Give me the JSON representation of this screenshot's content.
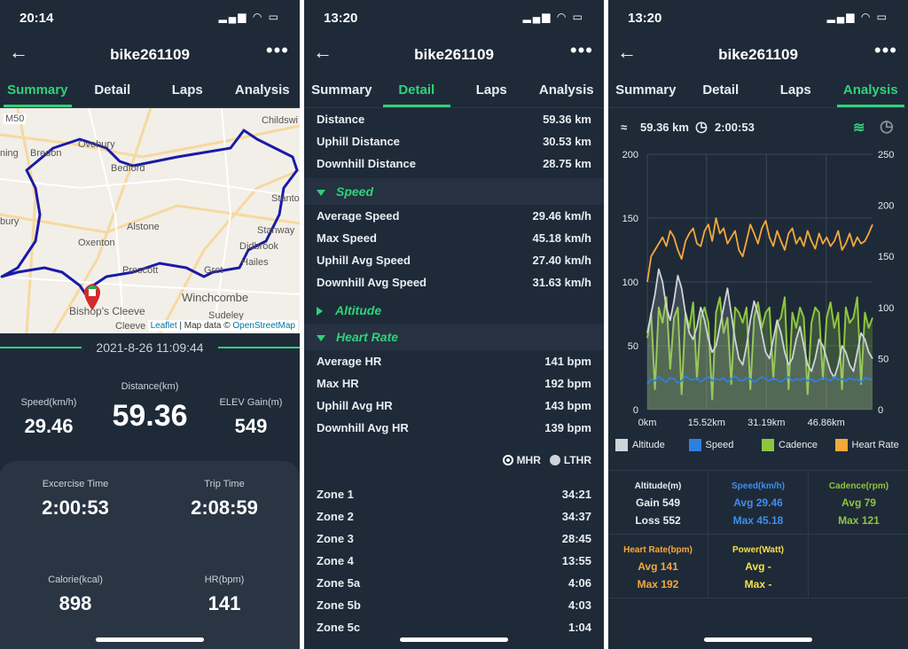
{
  "screens": [
    {
      "status_time": "20:14",
      "title": "bike261109",
      "tabs": [
        "Summary",
        "Detail",
        "Laps",
        "Analysis"
      ],
      "active_tab": 0,
      "map": {
        "labels": [
          "M50",
          "Childswi",
          "Ovebury",
          "ning",
          "Bredon",
          "Bedford",
          "bury",
          "Alstone",
          "Oxenton",
          "Stanton",
          "Stanway",
          "Didbrook",
          "Hailes",
          "Prescott",
          "Gret",
          "Winchcombe",
          "Sudeley",
          "Bishop's Cleeve",
          "Cleeve"
        ],
        "attribution_link1": "Leaflet",
        "attribution_text": " | Map data © ",
        "attribution_link2": "OpenStreetMap"
      },
      "date": "2021-8-26 11:09:44",
      "stats": {
        "speed_label": "Speed(km/h)",
        "speed_value": "29.46",
        "distance_label": "Distance(km)",
        "distance_value": "59.36",
        "elev_label": "ELEV Gain(m)",
        "elev_value": "549",
        "exercise_label": "Excercise Time",
        "exercise_value": "2:00:53",
        "trip_label": "Trip Time",
        "trip_value": "2:08:59",
        "calorie_label": "Calorie(kcal)",
        "calorie_value": "898",
        "hr_label": "HR(bpm)",
        "hr_value": "141"
      }
    },
    {
      "status_time": "13:20",
      "title": "bike261109",
      "tabs": [
        "Summary",
        "Detail",
        "Laps",
        "Analysis"
      ],
      "active_tab": 1,
      "top_rows": [
        {
          "label": "Distance",
          "value": "59.36 km"
        },
        {
          "label": "Uphill Distance",
          "value": "30.53 km"
        },
        {
          "label": "Downhill Distance",
          "value": "28.75 km"
        }
      ],
      "speed_section": "Speed",
      "speed_rows": [
        {
          "label": "Average Speed",
          "value": "29.46 km/h"
        },
        {
          "label": "Max Speed",
          "value": "45.18 km/h"
        },
        {
          "label": "Uphill Avg Speed",
          "value": "27.40 km/h"
        },
        {
          "label": "Downhill Avg Speed",
          "value": "31.63 km/h"
        }
      ],
      "altitude_section": "Altitude",
      "hr_section": "Heart Rate",
      "hr_rows": [
        {
          "label": "Average HR",
          "value": "141 bpm"
        },
        {
          "label": "Max HR",
          "value": "192 bpm"
        },
        {
          "label": "Uphill Avg HR",
          "value": "143 bpm"
        },
        {
          "label": "Downhill Avg HR",
          "value": "139 bpm"
        }
      ],
      "radio_mhr": "MHR",
      "radio_lthr": "LTHR",
      "zones": [
        {
          "label": "Zone 1",
          "value": "34:21"
        },
        {
          "label": "Zone 2",
          "value": "34:37"
        },
        {
          "label": "Zone 3",
          "value": "28:45"
        },
        {
          "label": "Zone 4",
          "value": "13:55"
        },
        {
          "label": "Zone 5a",
          "value": "4:06"
        },
        {
          "label": "Zone 5b",
          "value": "4:03"
        },
        {
          "label": "Zone 5c",
          "value": "1:04"
        }
      ]
    },
    {
      "status_time": "13:20",
      "title": "bike261109",
      "tabs": [
        "Summary",
        "Detail",
        "Laps",
        "Analysis"
      ],
      "active_tab": 3,
      "distance": "59.36 km",
      "duration": "2:00:53",
      "legend": [
        "Altitude",
        "Speed",
        "Cadence",
        "Heart Rate"
      ],
      "cells": {
        "altitude_h": "Altitude(m)",
        "altitude_1": "Gain 549",
        "altitude_2": "Loss 552",
        "speed_h": "Speed(km/h)",
        "speed_1": "Avg 29.46",
        "speed_2": "Max 45.18",
        "cadence_h": "Cadence(rpm)",
        "cadence_1": "Avg 79",
        "cadence_2": "Max 121",
        "hr_h": "Heart Rate(bpm)",
        "hr_1": "Avg 141",
        "hr_2": "Max 192",
        "power_h": "Power(Watt)",
        "power_1": "Avg -",
        "power_2": "Max -"
      }
    }
  ],
  "colors": {
    "bg": "#1f2a38",
    "accent": "#2fd27a",
    "altitude": "#cfd4da",
    "speed": "#2f7fe0",
    "cadence": "#8cc63f",
    "heart_rate": "#f5a93b",
    "power": "#f5e04b",
    "route": "#1a1aa8"
  },
  "chart_data": {
    "type": "line",
    "x": [
      0,
      1,
      2,
      3,
      4,
      5,
      6,
      7,
      8,
      9,
      10,
      11,
      12,
      13,
      14,
      15,
      16,
      17,
      18,
      19,
      20,
      21,
      22,
      23,
      24,
      25,
      26,
      27,
      28,
      29,
      30,
      31,
      32,
      33,
      34,
      35,
      36,
      37,
      38,
      39,
      40,
      41,
      42,
      43,
      44,
      45,
      46,
      47,
      48,
      49,
      50,
      51,
      52,
      53,
      54,
      55,
      56,
      57,
      58,
      59
    ],
    "x_tick_labels": [
      "0km",
      "15.52km",
      "31.19km",
      "46.86km"
    ],
    "x_ticks": [
      0,
      15.52,
      31.19,
      46.86
    ],
    "y_left_ticks": [
      "0",
      "50",
      "100",
      "150",
      "200"
    ],
    "y_left_lim": [
      0,
      200
    ],
    "y_right_ticks": [
      "0",
      "50",
      "100",
      "150",
      "200",
      "250"
    ],
    "y_right_lim": [
      0,
      250
    ],
    "grid": true,
    "series": [
      {
        "name": "Altitude",
        "axis": "left",
        "values": [
          60,
          75,
          90,
          110,
          100,
          80,
          70,
          85,
          105,
          95,
          75,
          60,
          55,
          65,
          80,
          70,
          55,
          45,
          50,
          65,
          80,
          95,
          75,
          55,
          40,
          35,
          50,
          70,
          85,
          75,
          60,
          45,
          40,
          55,
          70,
          60,
          45,
          35,
          40,
          55,
          65,
          50,
          35,
          30,
          40,
          55,
          50,
          40,
          30,
          25,
          35,
          50,
          45,
          35,
          30,
          45,
          60,
          55,
          45,
          40
        ]
      },
      {
        "name": "Speed",
        "axis": "right",
        "values": [
          25,
          30,
          28,
          32,
          29,
          27,
          31,
          30,
          26,
          28,
          33,
          30,
          29,
          31,
          27,
          30,
          32,
          28,
          30,
          29,
          31,
          27,
          30,
          33,
          29,
          28,
          31,
          30,
          27,
          29,
          32,
          30,
          28,
          31,
          29,
          27,
          30,
          32,
          28,
          30,
          29,
          31,
          28,
          30,
          27,
          29,
          31,
          30,
          28,
          32,
          29,
          30,
          28,
          31,
          29,
          30,
          27,
          31,
          30,
          29
        ]
      },
      {
        "name": "Cadence",
        "axis": "right",
        "values": [
          70,
          95,
          20,
          100,
          85,
          110,
          40,
          90,
          100,
          15,
          95,
          80,
          105,
          30,
          90,
          100,
          85,
          10,
          95,
          110,
          75,
          90,
          25,
          100,
          95,
          85,
          100,
          20,
          90,
          105,
          80,
          95,
          100,
          30,
          85,
          90,
          110,
          20,
          95,
          80,
          100,
          90,
          15,
          85,
          100,
          95,
          30,
          90,
          105,
          80,
          95,
          20,
          100,
          85,
          90,
          110,
          25,
          95,
          80,
          90
        ]
      },
      {
        "name": "Heart Rate",
        "axis": "left",
        "values": [
          100,
          120,
          125,
          130,
          135,
          128,
          140,
          135,
          125,
          118,
          132,
          138,
          142,
          130,
          128,
          140,
          145,
          132,
          150,
          138,
          142,
          130,
          135,
          140,
          125,
          120,
          132,
          145,
          138,
          130,
          142,
          148,
          135,
          128,
          140,
          132,
          125,
          138,
          142,
          130,
          135,
          128,
          140,
          132,
          126,
          138,
          130,
          135,
          128,
          132,
          140,
          125,
          130,
          138,
          128,
          135,
          130,
          132,
          138,
          145
        ]
      }
    ]
  }
}
